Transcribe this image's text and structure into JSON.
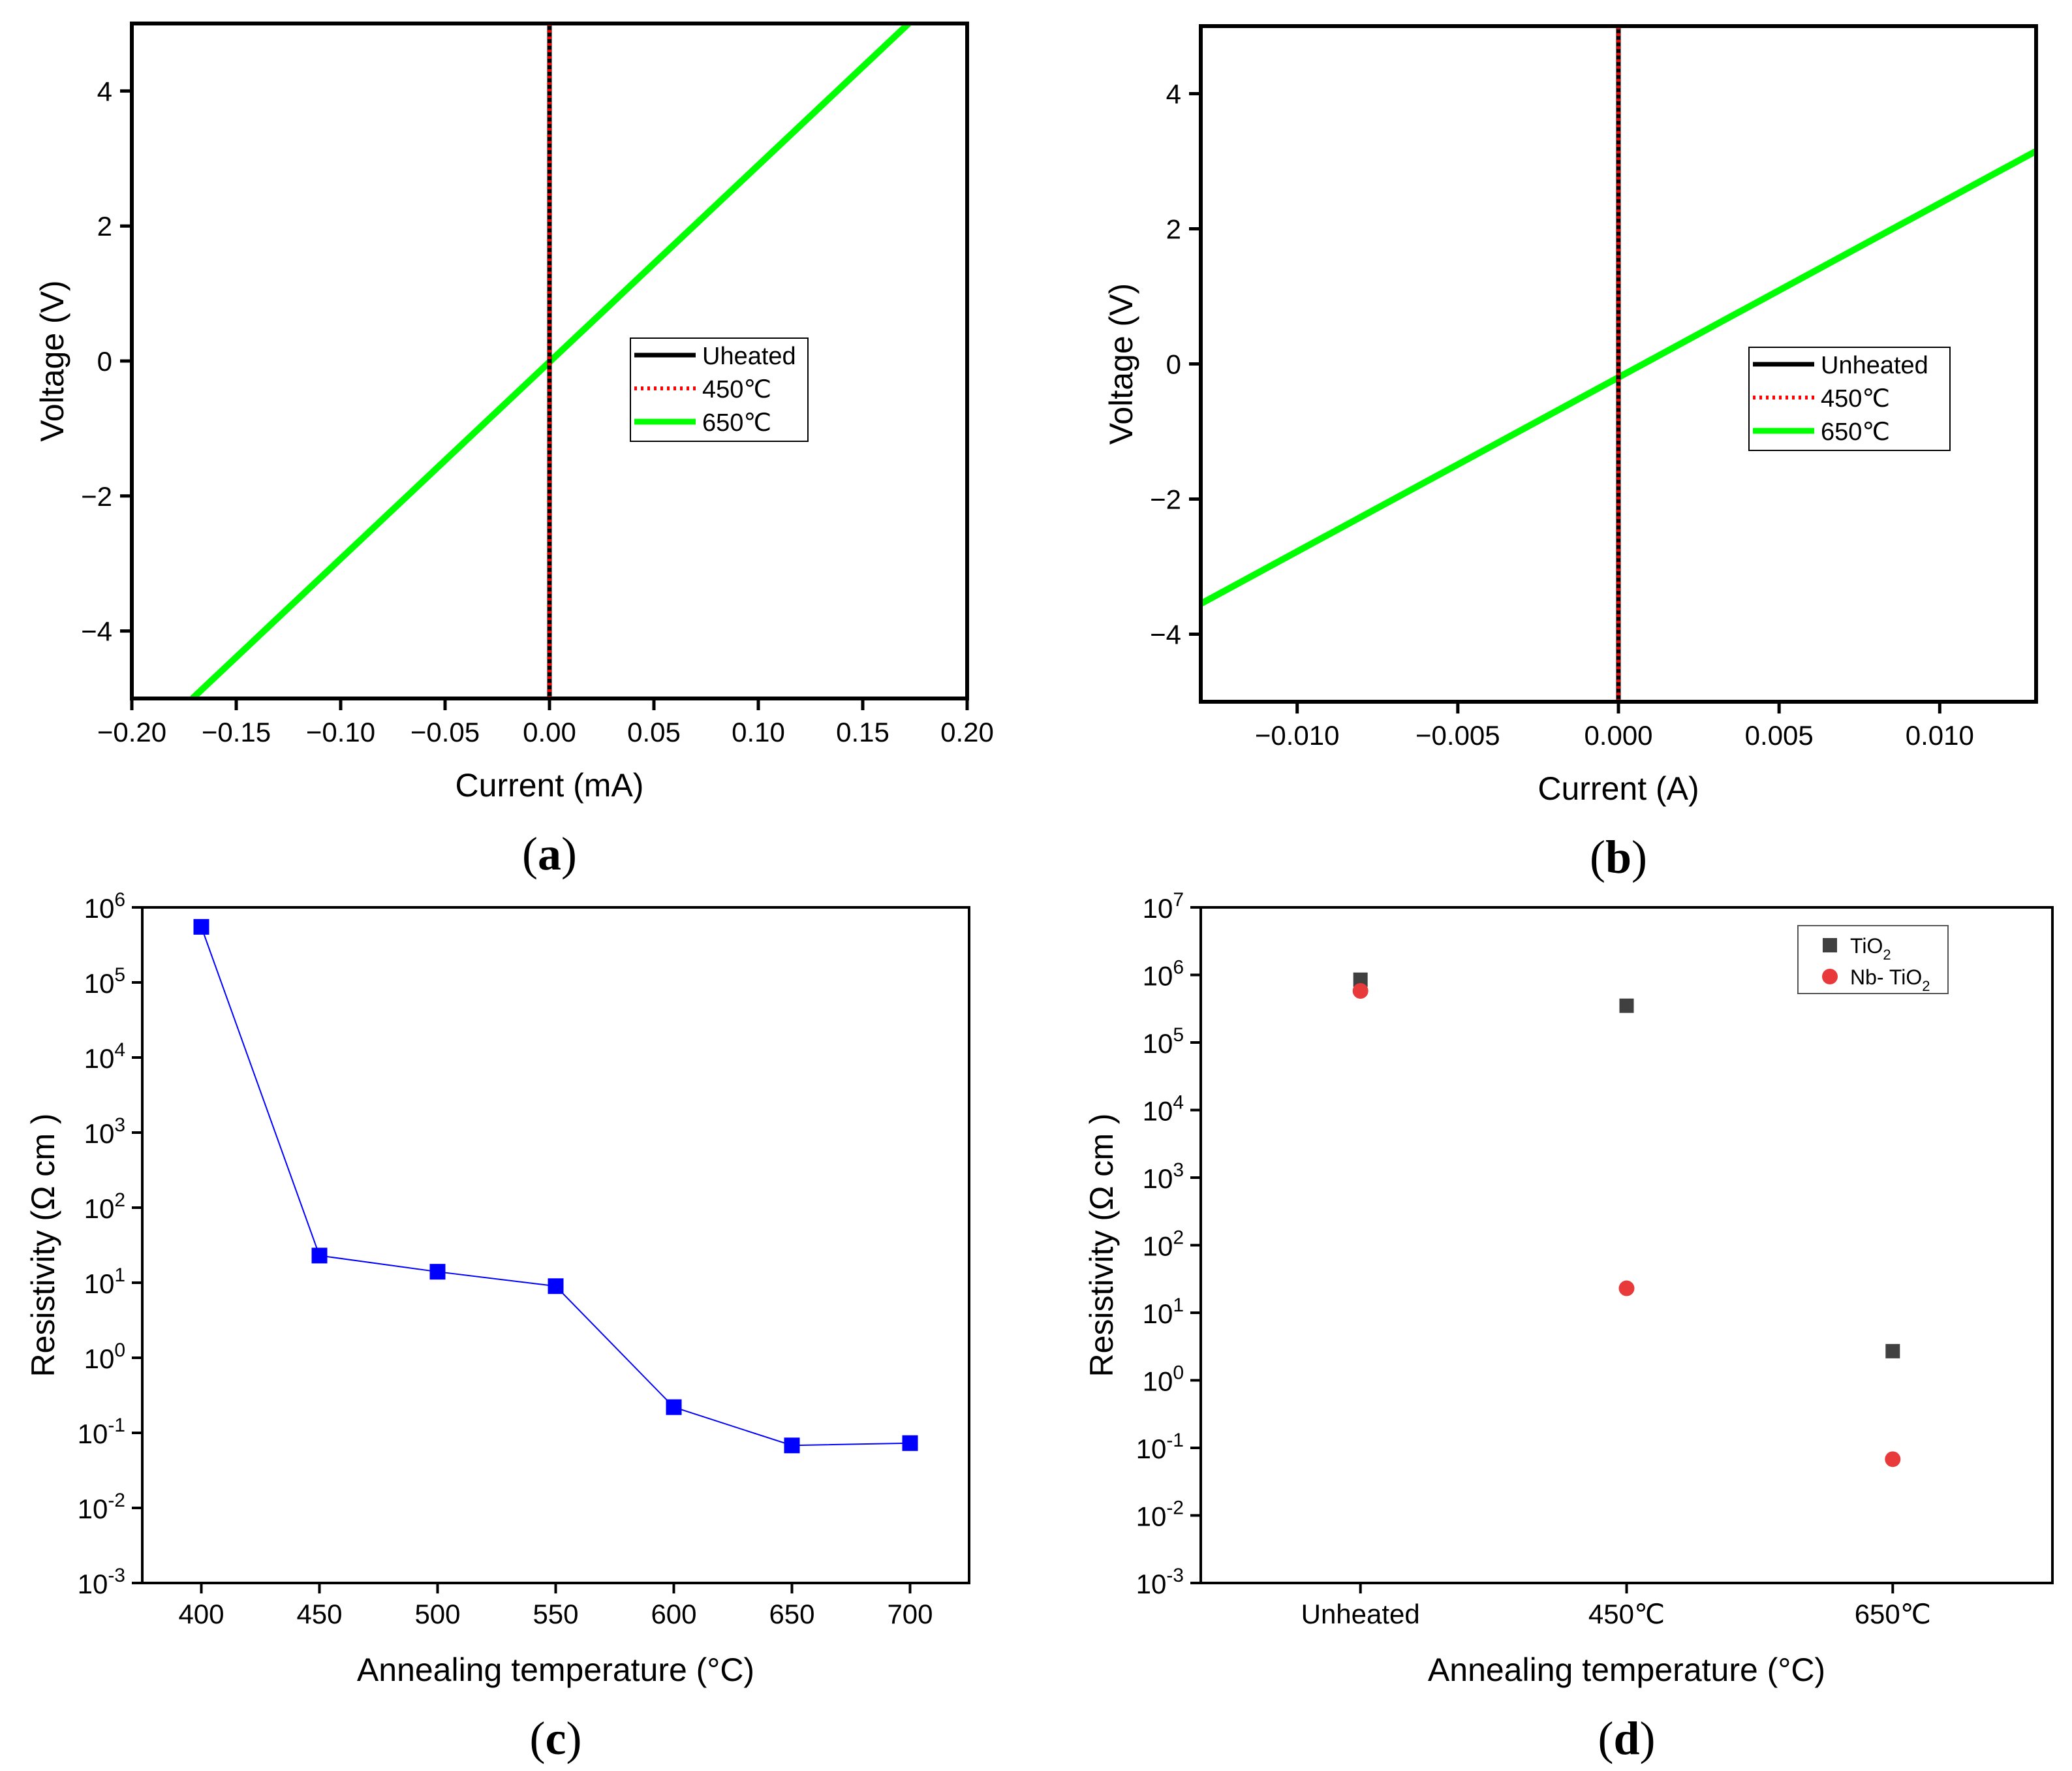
{
  "chart_data": [
    {
      "panel": "a",
      "type": "line",
      "panel_label": "a",
      "xlabel": "Current (mA)",
      "ylabel": "Voltage (V)",
      "xlim": [
        -0.2,
        0.2
      ],
      "ylim": [
        -5,
        5
      ],
      "xticks": [
        -0.2,
        -0.15,
        -0.1,
        -0.05,
        0.0,
        0.05,
        0.1,
        0.15,
        0.2
      ],
      "xtick_labels": [
        "−0.20",
        "−0.15",
        "−0.10",
        "−0.05",
        "0.00",
        "0.05",
        "0.10",
        "0.15",
        "0.20"
      ],
      "yticks": [
        -4,
        -2,
        0,
        2,
        4
      ],
      "ytick_labels": [
        "−4",
        "−2",
        "0",
        "2",
        "4"
      ],
      "series": [
        {
          "name": "Uheated",
          "color": "#000000",
          "style": "solid",
          "x": [
            0.0,
            0.0
          ],
          "y": [
            -5,
            5
          ]
        },
        {
          "name": "450℃",
          "color": "#ff0000",
          "style": "dotted",
          "x": [
            0.0,
            0.0
          ],
          "y": [
            -5,
            5
          ]
        },
        {
          "name": "650℃",
          "color": "#00ff00",
          "style": "solid",
          "x": [
            -0.171,
            0.172
          ],
          "y": [
            -5,
            5
          ]
        }
      ],
      "legend_position": "center-right"
    },
    {
      "panel": "b",
      "type": "line",
      "panel_label": "b",
      "xlabel": "Current (A)",
      "ylabel": "Voltage (V)",
      "xlim": [
        -0.013,
        0.013
      ],
      "ylim": [
        -5,
        5
      ],
      "xticks": [
        -0.01,
        -0.005,
        0.0,
        0.005,
        0.01
      ],
      "xtick_labels": [
        "−0.010",
        "−0.005",
        "0.000",
        "0.005",
        "0.010"
      ],
      "yticks": [
        -4,
        -2,
        0,
        2,
        4
      ],
      "ytick_labels": [
        "−4",
        "−2",
        "0",
        "2",
        "4"
      ],
      "series": [
        {
          "name": "Unheated",
          "color": "#000000",
          "style": "solid",
          "x": [
            0.0,
            0.0
          ],
          "y": [
            -5,
            5
          ]
        },
        {
          "name": "450℃",
          "color": "#ff0000",
          "style": "dotted",
          "x": [
            0.0,
            0.0
          ],
          "y": [
            -5,
            5
          ]
        },
        {
          "name": "650℃",
          "color": "#00ff00",
          "style": "solid",
          "x": [
            -0.013,
            0.013
          ],
          "y": [
            -3.55,
            3.15
          ]
        }
      ],
      "legend_position": "center-right"
    },
    {
      "panel": "c",
      "type": "line",
      "panel_label": "c",
      "xlabel": "Annealing temperature (°C)",
      "ylabel": "Resistivity (Ω cm )",
      "xlim": [
        375,
        725
      ],
      "ylim_log10": [
        -3,
        6
      ],
      "xticks": [
        400,
        450,
        500,
        550,
        600,
        650,
        700
      ],
      "xtick_labels": [
        "400",
        "450",
        "500",
        "550",
        "600",
        "650",
        "700"
      ],
      "yticks_log10": [
        -3,
        -2,
        -1,
        0,
        1,
        2,
        3,
        4,
        5,
        6
      ],
      "ytick_labels": [
        "-3",
        "-2",
        "-1",
        "0",
        "1",
        "2",
        "3",
        "4",
        "5",
        "6"
      ],
      "series": [
        {
          "name": "Resistivity",
          "color": "#0000ff",
          "x": [
            400,
            450,
            500,
            550,
            600,
            650,
            700
          ],
          "y": [
            550000,
            23,
            14,
            9,
            0.22,
            0.068,
            0.073
          ]
        }
      ]
    },
    {
      "panel": "d",
      "type": "scatter",
      "panel_label": "d",
      "xlabel": "Annealing temperature (°C)",
      "ylabel": "Resistivity (Ω cm )",
      "categories": [
        "Unheated",
        "450℃",
        "650℃"
      ],
      "ylim_log10": [
        -3,
        7
      ],
      "yticks_log10": [
        -3,
        -2,
        -1,
        0,
        1,
        2,
        3,
        4,
        5,
        6,
        7
      ],
      "ytick_labels": [
        "-3",
        "-2",
        "-1",
        "0",
        "1",
        "2",
        "3",
        "4",
        "5",
        "6",
        "7"
      ],
      "series": [
        {
          "name": "TiO",
          "sub": "2",
          "color": "#404040",
          "marker": "square",
          "values": [
            850000,
            350000,
            2.7
          ]
        },
        {
          "name": "Nb- TiO",
          "sub": "2",
          "color": "#e83a3a",
          "marker": "circle",
          "values": [
            580000,
            23,
            0.068
          ]
        }
      ],
      "legend_position": "top-right"
    }
  ]
}
